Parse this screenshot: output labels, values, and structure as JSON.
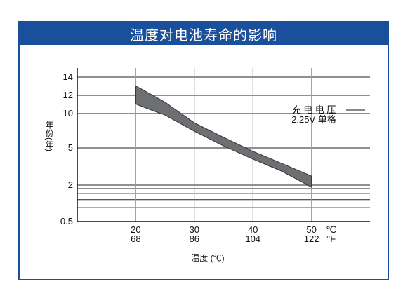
{
  "title": "温度对电池寿命的影响",
  "colors": {
    "frame": "#1a4f9c",
    "band": "#6e6f73"
  },
  "chart_data": {
    "type": "area",
    "title": "温度对电池寿命的影响",
    "xlabel": "温度 (℃)",
    "ylabel": "年份(年)",
    "y_ticks": [
      "14",
      "12",
      "10",
      "5",
      "2",
      "0.5"
    ],
    "x_ticks": [
      {
        "c": "20",
        "f": "68"
      },
      {
        "c": "30",
        "f": "86"
      },
      {
        "c": "40",
        "f": "104"
      },
      {
        "c": "50",
        "f": "122"
      }
    ],
    "x_units": {
      "c": "℃",
      "f": "°F"
    },
    "annotation": {
      "line1": "充 电 电 压",
      "line2": "2.25V 单格"
    },
    "log_scale_y": true,
    "ylim": [
      0.5,
      14
    ],
    "xlim": [
      10,
      60
    ],
    "grid": true,
    "series": [
      {
        "x": [
          20,
          22,
          25,
          30,
          35,
          40,
          45,
          50
        ],
        "upper": [
          13,
          12.3,
          11.2,
          8.3,
          6.2,
          4.6,
          3.4,
          2.5
        ],
        "lower": [
          11,
          10.5,
          9.7,
          7.0,
          5.2,
          3.8,
          2.8,
          1.85
        ]
      }
    ]
  }
}
